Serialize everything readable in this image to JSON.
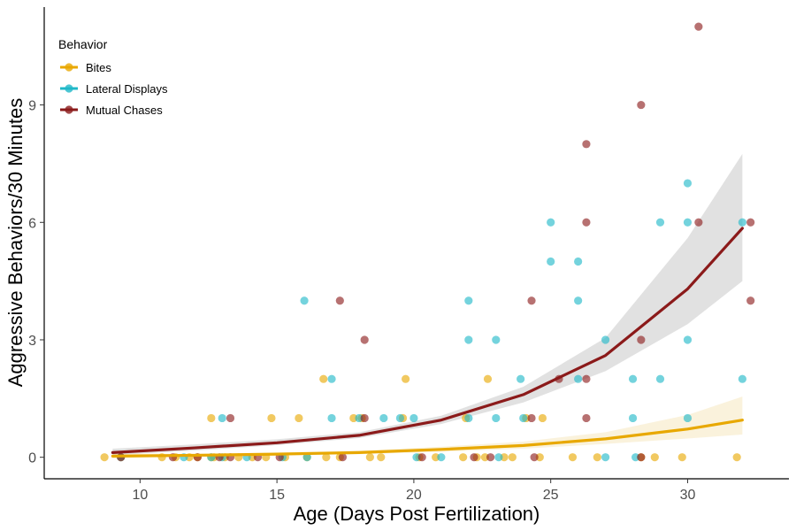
{
  "chart_data": {
    "type": "scatter",
    "xlabel": "Age (Days Post Fertilization)",
    "ylabel": "Aggressive Behaviors/30 Minutes",
    "xlim": [
      6.5,
      33.7
    ],
    "ylim": [
      -0.55,
      11.5
    ],
    "x_ticks": [
      10,
      15,
      20,
      25,
      30
    ],
    "y_ticks": [
      0,
      3,
      6,
      9
    ],
    "grid": false,
    "legend": {
      "title": "Behavior",
      "position": "top-left"
    },
    "series": [
      {
        "name": "Bites",
        "color": "#E8A800",
        "points": [
          [
            8.7,
            0
          ],
          [
            9.3,
            0
          ],
          [
            10.8,
            0
          ],
          [
            11.3,
            0
          ],
          [
            11.8,
            0
          ],
          [
            12.1,
            0
          ],
          [
            12.6,
            0
          ],
          [
            12.7,
            0
          ],
          [
            12.6,
            1
          ],
          [
            13.1,
            0
          ],
          [
            13.6,
            0
          ],
          [
            14.1,
            0
          ],
          [
            14.6,
            0
          ],
          [
            14.8,
            1
          ],
          [
            15.3,
            0
          ],
          [
            15.8,
            1
          ],
          [
            16.1,
            0
          ],
          [
            16.7,
            2
          ],
          [
            16.8,
            0
          ],
          [
            17.3,
            0
          ],
          [
            17.8,
            1
          ],
          [
            18.1,
            1
          ],
          [
            18.4,
            0
          ],
          [
            18.8,
            0
          ],
          [
            19.6,
            1
          ],
          [
            19.7,
            2
          ],
          [
            20.2,
            0
          ],
          [
            20.8,
            0
          ],
          [
            21.8,
            0
          ],
          [
            21.9,
            1
          ],
          [
            22.3,
            0
          ],
          [
            22.6,
            0
          ],
          [
            22.7,
            2
          ],
          [
            23.3,
            0
          ],
          [
            23.6,
            0
          ],
          [
            24.1,
            1
          ],
          [
            24.6,
            0
          ],
          [
            24.7,
            1
          ],
          [
            25.8,
            0
          ],
          [
            26.7,
            0
          ],
          [
            28.3,
            0
          ],
          [
            28.8,
            0
          ],
          [
            29.8,
            0
          ],
          [
            31.8,
            0
          ]
        ],
        "trend": [
          [
            9,
            0.03
          ],
          [
            12,
            0.05
          ],
          [
            15,
            0.08
          ],
          [
            18,
            0.12
          ],
          [
            21,
            0.2
          ],
          [
            24,
            0.3
          ],
          [
            27,
            0.47
          ],
          [
            30,
            0.72
          ],
          [
            32,
            0.95
          ]
        ],
        "band": [
          [
            9,
            -0.03,
            0.1
          ],
          [
            12,
            0.01,
            0.09
          ],
          [
            15,
            0.05,
            0.12
          ],
          [
            18,
            0.08,
            0.17
          ],
          [
            21,
            0.14,
            0.27
          ],
          [
            24,
            0.22,
            0.4
          ],
          [
            27,
            0.34,
            0.64
          ],
          [
            30,
            0.48,
            1.08
          ],
          [
            32,
            0.58,
            1.55
          ]
        ]
      },
      {
        "name": "Lateral Displays",
        "color": "#1FB8C8",
        "points": [
          [
            9.3,
            0
          ],
          [
            11.6,
            0
          ],
          [
            12.6,
            0
          ],
          [
            13.0,
            1
          ],
          [
            13.0,
            0
          ],
          [
            13.9,
            0
          ],
          [
            15.2,
            0
          ],
          [
            16.0,
            4
          ],
          [
            16.1,
            0
          ],
          [
            17.0,
            2
          ],
          [
            17.0,
            1
          ],
          [
            18.0,
            1
          ],
          [
            18.9,
            1
          ],
          [
            19.5,
            1
          ],
          [
            20.0,
            1
          ],
          [
            20.1,
            0
          ],
          [
            21.0,
            0
          ],
          [
            22.0,
            4
          ],
          [
            22.0,
            3
          ],
          [
            22.0,
            1
          ],
          [
            23.0,
            3
          ],
          [
            23.0,
            1
          ],
          [
            23.1,
            0
          ],
          [
            23.9,
            2
          ],
          [
            24.0,
            1
          ],
          [
            25.0,
            6
          ],
          [
            25.0,
            5
          ],
          [
            26.0,
            5
          ],
          [
            26.0,
            4
          ],
          [
            26.0,
            2
          ],
          [
            27.0,
            3
          ],
          [
            27.0,
            0
          ],
          [
            28.0,
            2
          ],
          [
            28.0,
            1
          ],
          [
            28.1,
            0
          ],
          [
            29.0,
            6
          ],
          [
            29.0,
            2
          ],
          [
            30.0,
            7
          ],
          [
            30.0,
            6
          ],
          [
            30.0,
            3
          ],
          [
            30.0,
            1
          ],
          [
            32.0,
            6
          ],
          [
            32.0,
            2
          ]
        ]
      },
      {
        "name": "Mutual Chases",
        "color": "#8B1A1A",
        "points": [
          [
            9.3,
            0
          ],
          [
            11.2,
            0
          ],
          [
            12.1,
            0
          ],
          [
            12.9,
            0
          ],
          [
            13.3,
            1
          ],
          [
            13.3,
            0
          ],
          [
            14.3,
            0
          ],
          [
            15.1,
            0
          ],
          [
            17.3,
            4
          ],
          [
            17.4,
            0
          ],
          [
            18.2,
            3
          ],
          [
            18.2,
            1
          ],
          [
            20.3,
            0
          ],
          [
            22.2,
            0
          ],
          [
            22.8,
            0
          ],
          [
            24.3,
            4
          ],
          [
            24.3,
            1
          ],
          [
            24.4,
            0
          ],
          [
            25.3,
            2
          ],
          [
            26.3,
            8
          ],
          [
            26.3,
            6
          ],
          [
            26.3,
            2
          ],
          [
            26.3,
            1
          ],
          [
            28.3,
            9
          ],
          [
            28.3,
            3
          ],
          [
            28.3,
            0
          ],
          [
            30.4,
            11
          ],
          [
            30.4,
            6
          ],
          [
            32.3,
            6
          ],
          [
            32.3,
            4
          ]
        ],
        "trend": [
          [
            9,
            0.12
          ],
          [
            12,
            0.24
          ],
          [
            15,
            0.37
          ],
          [
            18,
            0.56
          ],
          [
            21,
            0.95
          ],
          [
            24,
            1.6
          ],
          [
            27,
            2.6
          ],
          [
            30,
            4.3
          ],
          [
            32,
            5.85
          ]
        ],
        "band": [
          [
            9,
            0.06,
            0.22
          ],
          [
            12,
            0.17,
            0.33
          ],
          [
            15,
            0.31,
            0.46
          ],
          [
            18,
            0.49,
            0.64
          ],
          [
            21,
            0.85,
            1.06
          ],
          [
            24,
            1.4,
            1.8
          ],
          [
            27,
            2.2,
            3.05
          ],
          [
            30,
            3.4,
            5.6
          ],
          [
            32,
            4.5,
            7.75
          ]
        ]
      }
    ]
  }
}
